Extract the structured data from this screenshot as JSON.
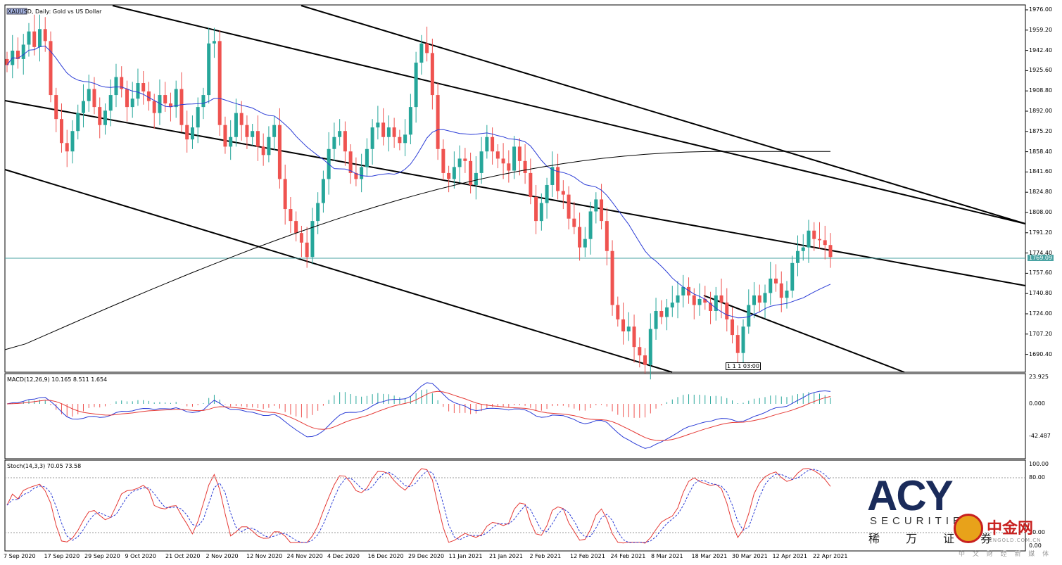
{
  "chart_header": "XAUUSD, Daily:  Gold vs US Dollar",
  "macd_label": "MACD(12,26,9) 10.165 8.511 1.654",
  "stoch_label": "Stoch(14,3,3) 70.05 73.58",
  "current_price": "1769.09",
  "cursor_tag": "1 1 1 03:00",
  "price_axis": [
    "1976.00",
    "1959.20",
    "1942.40",
    "1925.60",
    "1908.80",
    "1892.00",
    "1875.20",
    "1858.40",
    "1841.60",
    "1824.80",
    "1808.00",
    "1791.20",
    "1774.40",
    "1757.60",
    "1740.80",
    "1724.00",
    "1707.20",
    "1690.40"
  ],
  "macd_axis": [
    "23.925",
    "0.000",
    "-42.487"
  ],
  "stoch_axis": [
    "100.00",
    "80.00",
    "20.00",
    "0.00"
  ],
  "dates": [
    "7 Sep 2020",
    "17 Sep 2020",
    "29 Sep 2020",
    "9 Oct 2020",
    "21 Oct 2020",
    "2 Nov 2020",
    "12 Nov 2020",
    "24 Nov 2020",
    "4 Dec 2020",
    "16 Dec 2020",
    "29 Dec 2020",
    "11 Jan 2021",
    "21 Jan 2021",
    "2 Feb 2021",
    "12 Feb 2021",
    "24 Feb 2021",
    "8 Mar 2021",
    "18 Mar 2021",
    "30 Mar 2021",
    "12 Apr 2021",
    "22 Apr 2021"
  ],
  "colors": {
    "bull": "#26a69a",
    "bear": "#ef5350",
    "ma50": "#2b3cd6",
    "ma200": "#000000",
    "signal": "#e53935",
    "price_line": "#4aa3a3"
  },
  "logo": {
    "brand": "ACY",
    "sub": "SECURITIES",
    "cn": "稀 万 证 券",
    "watermark": "中金网",
    "watermark_sub": "CNGOLD.COM.CN",
    "watermark_cn": "中 文 财 经 新 媒 体"
  },
  "chart_data": {
    "type": "candlestick",
    "title": "XAUUSD, Daily:  Gold vs US Dollar",
    "ylim": [
      1682,
      1978
    ],
    "closes": [
      1930,
      1942,
      1935,
      1947,
      1958,
      1945,
      1960,
      1950,
      1905,
      1885,
      1865,
      1858,
      1875,
      1890,
      1900,
      1910,
      1895,
      1880,
      1892,
      1905,
      1920,
      1910,
      1895,
      1902,
      1915,
      1908,
      1900,
      1890,
      1905,
      1898,
      1895,
      1910,
      1880,
      1868,
      1878,
      1895,
      1905,
      1948,
      1950,
      1880,
      1862,
      1870,
      1890,
      1880,
      1870,
      1875,
      1862,
      1855,
      1870,
      1880,
      1835,
      1810,
      1800,
      1790,
      1782,
      1770,
      1800,
      1815,
      1835,
      1860,
      1870,
      1875,
      1858,
      1840,
      1835,
      1845,
      1860,
      1878,
      1882,
      1870,
      1878,
      1870,
      1865,
      1872,
      1895,
      1932,
      1948,
      1940,
      1905,
      1860,
      1840,
      1835,
      1845,
      1852,
      1850,
      1830,
      1840,
      1858,
      1870,
      1858,
      1852,
      1848,
      1842,
      1862,
      1850,
      1840,
      1820,
      1800,
      1815,
      1830,
      1845,
      1825,
      1822,
      1802,
      1795,
      1778,
      1785,
      1808,
      1818,
      1800,
      1775,
      1730,
      1718,
      1708,
      1712,
      1695,
      1688,
      1680,
      1710,
      1725,
      1720,
      1728,
      1732,
      1738,
      1745,
      1738,
      1730,
      1735,
      1732,
      1725,
      1738,
      1732,
      1718,
      1705,
      1690,
      1712,
      1730,
      1738,
      1732,
      1740,
      1752,
      1748,
      1736,
      1742,
      1765,
      1775,
      1778,
      1792,
      1785,
      1784,
      1780,
      1770
    ]
  }
}
